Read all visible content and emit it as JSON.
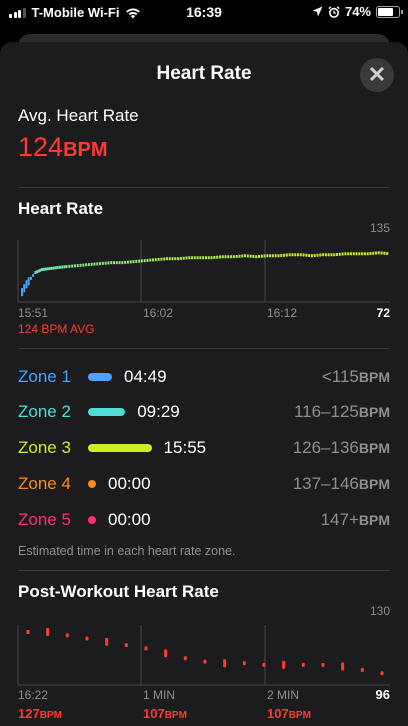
{
  "status": {
    "carrier": "T-Mobile Wi-Fi",
    "time": "16:39",
    "battery": "74%",
    "battery_level": 0.74
  },
  "header": {
    "title": "Heart Rate",
    "close_icon": "xmark-icon"
  },
  "avg": {
    "label": "Avg. Heart Rate",
    "value": "124",
    "unit": "BPM"
  },
  "hr_chart": {
    "title": "Heart Rate",
    "ymax_label": "135",
    "ymin_label": "72",
    "times": [
      "15:51",
      "16:02",
      "16:12"
    ],
    "avg_label": "124 BPM AVG"
  },
  "chart_data": [
    {
      "type": "line",
      "title": "Heart Rate",
      "ylim": [
        72,
        135
      ],
      "x_ticks": [
        "15:51",
        "16:02",
        "16:12"
      ],
      "y_ticks": [
        "135",
        "72"
      ],
      "annotation": "124 BPM AVG",
      "x_minutes": [
        0,
        0.4,
        0.8,
        1.2,
        1.8,
        2.5,
        3.2,
        4,
        5,
        6,
        7,
        8,
        9,
        10,
        11,
        12,
        13,
        14,
        15,
        16,
        17,
        18,
        19,
        20,
        21,
        22,
        23,
        24,
        25,
        26,
        27,
        28,
        29,
        30,
        31,
        32,
        33
      ],
      "values": [
        82,
        90,
        96,
        102,
        105,
        106,
        107,
        108,
        109,
        110,
        111,
        112,
        112,
        113,
        114,
        115,
        116,
        116,
        117,
        117,
        117,
        118,
        118,
        119,
        118,
        119,
        119,
        120,
        120,
        119,
        120,
        120,
        121,
        121,
        121,
        122,
        121
      ]
    },
    {
      "type": "scatter",
      "title": "Post-Workout Heart Rate",
      "ylim": [
        96,
        130
      ],
      "x_ticks": [
        "16:22",
        "1 MIN",
        "2 MIN"
      ],
      "y_ticks": [
        "130",
        "96"
      ],
      "x_seconds": [
        0,
        10,
        20,
        30,
        40,
        50,
        60,
        70,
        80,
        90,
        100,
        110,
        120,
        130,
        140,
        150,
        160,
        170,
        180
      ],
      "values": [
        127,
        127,
        125,
        123,
        121,
        119,
        117,
        114,
        111,
        109,
        108,
        108,
        107,
        107,
        107,
        107,
        106,
        104,
        102
      ]
    }
  ],
  "zones": {
    "items": [
      {
        "name": "Zone 1",
        "time": "04:49",
        "range": "<115",
        "unit": "BPM",
        "color": "#4aa3f5",
        "fraction": 0.16
      },
      {
        "name": "Zone 2",
        "time": "09:29",
        "range": "116–125",
        "unit": "BPM",
        "color": "#4fdcd4",
        "fraction": 0.31
      },
      {
        "name": "Zone 3",
        "time": "15:55",
        "range": "126–136",
        "unit": "BPM",
        "color": "#c8f025",
        "fraction": 0.53
      },
      {
        "name": "Zone 4",
        "time": "00:00",
        "range": "137–146",
        "unit": "BPM",
        "color": "#ff8c1a",
        "fraction": 0
      },
      {
        "name": "Zone 5",
        "time": "00:00",
        "range": "147+",
        "unit": "BPM",
        "color": "#ff2d78",
        "fraction": 0
      }
    ],
    "note": "Estimated time in each heart rate zone."
  },
  "post": {
    "title": "Post-Workout Heart Rate",
    "ymax_label": "130",
    "ymin_label": "96",
    "times": [
      "16:22",
      "1 MIN",
      "2 MIN"
    ],
    "values": [
      {
        "value": "127",
        "unit": "BPM"
      },
      {
        "value": "107",
        "unit": "BPM"
      },
      {
        "value": "107",
        "unit": "BPM"
      }
    ]
  },
  "colors": {
    "accent_red": "#ff3b30",
    "secondary_text": "#8e8e93"
  }
}
